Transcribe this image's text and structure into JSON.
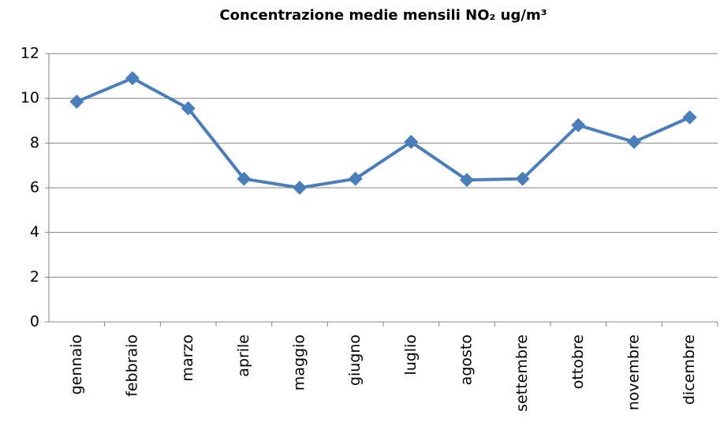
{
  "chart_data": {
    "type": "line",
    "title": "Concentrazione medie mensili NO₂ ug/m³",
    "categories": [
      "gennaio",
      "febbraio",
      "marzo",
      "aprile",
      "maggio",
      "giugno",
      "luglio",
      "agosto",
      "settembre",
      "ottobre",
      "novembre",
      "dicembre"
    ],
    "series": [
      {
        "name": "NO₂",
        "color": "#4a7ebb",
        "values": [
          9.85,
          10.9,
          9.55,
          6.4,
          6.0,
          6.4,
          8.05,
          6.35,
          6.4,
          8.8,
          8.05,
          9.15
        ]
      }
    ],
    "ylim": [
      0,
      12
    ],
    "yticks": [
      0,
      2,
      4,
      6,
      8,
      10,
      12
    ],
    "grid": true,
    "legend": false
  }
}
